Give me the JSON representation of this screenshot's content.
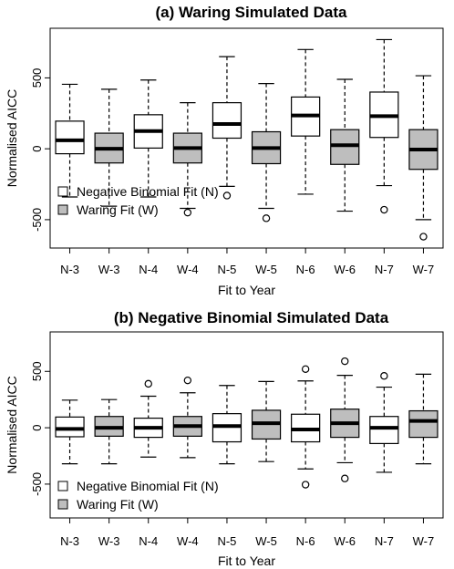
{
  "chart_data": [
    {
      "type": "boxplot",
      "title": "(a) Waring Simulated Data",
      "xlabel": "Fit to Year",
      "ylabel": "Normalised AICC",
      "ylim": [
        -700,
        850
      ],
      "yticks": [
        -500,
        0,
        500
      ],
      "categories": [
        "N-3",
        "W-3",
        "N-4",
        "W-4",
        "N-5",
        "W-5",
        "N-6",
        "W-6",
        "N-7",
        "W-7"
      ],
      "legend": [
        {
          "label": "Negative Binomial Fit (N)",
          "color": "#ffffff"
        },
        {
          "label": "Waring Fit (W)",
          "color": "#bebebe"
        }
      ],
      "legend_position": "bottom-left",
      "boxes": [
        {
          "category": "N-3",
          "fill": "#ffffff",
          "whisker_low": -340,
          "q1": -35,
          "median": 60,
          "q3": 195,
          "whisker_high": 455,
          "outliers": []
        },
        {
          "category": "W-3",
          "fill": "#bebebe",
          "whisker_low": -405,
          "q1": -100,
          "median": 0,
          "q3": 110,
          "whisker_high": 420,
          "outliers": []
        },
        {
          "category": "N-4",
          "fill": "#ffffff",
          "whisker_low": -340,
          "q1": 5,
          "median": 125,
          "q3": 240,
          "whisker_high": 485,
          "outliers": []
        },
        {
          "category": "W-4",
          "fill": "#bebebe",
          "whisker_low": -420,
          "q1": -100,
          "median": 5,
          "q3": 110,
          "whisker_high": 325,
          "outliers": [
            -450
          ]
        },
        {
          "category": "N-5",
          "fill": "#ffffff",
          "whisker_low": -265,
          "q1": 75,
          "median": 175,
          "q3": 325,
          "whisker_high": 650,
          "outliers": [
            -330
          ]
        },
        {
          "category": "W-5",
          "fill": "#bebebe",
          "whisker_low": -420,
          "q1": -105,
          "median": 5,
          "q3": 120,
          "whisker_high": 460,
          "outliers": [
            -490
          ]
        },
        {
          "category": "N-6",
          "fill": "#ffffff",
          "whisker_low": -320,
          "q1": 90,
          "median": 235,
          "q3": 365,
          "whisker_high": 700,
          "outliers": []
        },
        {
          "category": "W-6",
          "fill": "#bebebe",
          "whisker_low": -440,
          "q1": -110,
          "median": 25,
          "q3": 135,
          "whisker_high": 490,
          "outliers": []
        },
        {
          "category": "N-7",
          "fill": "#ffffff",
          "whisker_low": -260,
          "q1": 80,
          "median": 230,
          "q3": 400,
          "whisker_high": 770,
          "outliers": [
            -430
          ]
        },
        {
          "category": "W-7",
          "fill": "#bebebe",
          "whisker_low": -500,
          "q1": -145,
          "median": -5,
          "q3": 135,
          "whisker_high": 515,
          "outliers": [
            -620
          ]
        }
      ]
    },
    {
      "type": "boxplot",
      "title": "(b) Negative Binomial Simulated Data",
      "xlabel": "Fit to Year",
      "ylabel": "Normalised AICC",
      "ylim": [
        -800,
        850
      ],
      "yticks": [
        -500,
        0,
        500
      ],
      "categories": [
        "N-3",
        "W-3",
        "N-4",
        "W-4",
        "N-5",
        "W-5",
        "N-6",
        "W-6",
        "N-7",
        "W-7"
      ],
      "legend": [
        {
          "label": "Negative Binomial Fit (N)",
          "color": "#ffffff"
        },
        {
          "label": "Waring Fit (W)",
          "color": "#bebebe"
        }
      ],
      "legend_position": "bottom-left",
      "boxes": [
        {
          "category": "N-3",
          "fill": "#ffffff",
          "whisker_low": -320,
          "q1": -80,
          "median": -10,
          "q3": 95,
          "whisker_high": 245,
          "outliers": []
        },
        {
          "category": "W-3",
          "fill": "#bebebe",
          "whisker_low": -320,
          "q1": -75,
          "median": 0,
          "q3": 100,
          "whisker_high": 250,
          "outliers": []
        },
        {
          "category": "N-4",
          "fill": "#ffffff",
          "whisker_low": -260,
          "q1": -85,
          "median": 0,
          "q3": 85,
          "whisker_high": 280,
          "outliers": [
            390
          ]
        },
        {
          "category": "W-4",
          "fill": "#bebebe",
          "whisker_low": -265,
          "q1": -75,
          "median": 15,
          "q3": 100,
          "whisker_high": 310,
          "outliers": [
            420
          ]
        },
        {
          "category": "N-5",
          "fill": "#ffffff",
          "whisker_low": -320,
          "q1": -125,
          "median": 15,
          "q3": 125,
          "whisker_high": 375,
          "outliers": []
        },
        {
          "category": "W-5",
          "fill": "#bebebe",
          "whisker_low": -300,
          "q1": -100,
          "median": 40,
          "q3": 155,
          "whisker_high": 410,
          "outliers": []
        },
        {
          "category": "N-6",
          "fill": "#ffffff",
          "whisker_low": -365,
          "q1": -125,
          "median": -15,
          "q3": 120,
          "whisker_high": 415,
          "outliers": [
            520,
            -505
          ]
        },
        {
          "category": "W-6",
          "fill": "#bebebe",
          "whisker_low": -310,
          "q1": -85,
          "median": 40,
          "q3": 165,
          "whisker_high": 465,
          "outliers": [
            590,
            -450
          ]
        },
        {
          "category": "N-7",
          "fill": "#ffffff",
          "whisker_low": -395,
          "q1": -140,
          "median": 0,
          "q3": 100,
          "whisker_high": 360,
          "outliers": [
            460
          ]
        },
        {
          "category": "W-7",
          "fill": "#bebebe",
          "whisker_low": -320,
          "q1": -85,
          "median": 60,
          "q3": 150,
          "whisker_high": 475,
          "outliers": []
        }
      ]
    }
  ]
}
